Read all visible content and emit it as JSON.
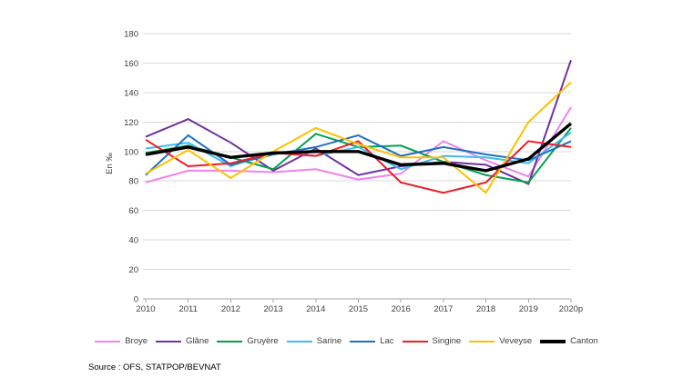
{
  "chart_data": {
    "type": "line",
    "title": "",
    "xlabel": "",
    "ylabel": "En ‰",
    "ylim": [
      0,
      180
    ],
    "ytick_step": 20,
    "grid": true,
    "legend_position": "bottom",
    "categories": [
      "2010",
      "2011",
      "2012",
      "2013",
      "2014",
      "2015",
      "2016",
      "2017",
      "2018",
      "2019",
      "2020p"
    ],
    "series": [
      {
        "name": "Broye",
        "color": "#EE82EE",
        "values": [
          79,
          87,
          87,
          86,
          88,
          81,
          85,
          107,
          94,
          83,
          130
        ]
      },
      {
        "name": "Glâne",
        "color": "#7030A0",
        "values": [
          110,
          122,
          106,
          87,
          102,
          84,
          90,
          93,
          91,
          78,
          162
        ]
      },
      {
        "name": "Gruyère",
        "color": "#00A14E",
        "values": [
          99,
          104,
          96,
          88,
          112,
          103,
          104,
          93,
          84,
          79,
          116
        ]
      },
      {
        "name": "Sarine",
        "color": "#3DBDED",
        "values": [
          102,
          106,
          90,
          100,
          97,
          103,
          88,
          97,
          96,
          92,
          113
        ]
      },
      {
        "name": "Lac",
        "color": "#1F70C1",
        "values": [
          84,
          111,
          91,
          98,
          103,
          111,
          97,
          103,
          98,
          94,
          107
        ]
      },
      {
        "name": "Singine",
        "color": "#EE1C25",
        "values": [
          108,
          90,
          92,
          99,
          97,
          107,
          79,
          72,
          79,
          107,
          103
        ]
      },
      {
        "name": "Veveyse",
        "color": "#FFC000",
        "values": [
          85,
          101,
          82,
          100,
          116,
          105,
          96,
          96,
          72,
          120,
          147
        ]
      },
      {
        "name": "Canton",
        "color": "#000000",
        "values": [
          98,
          103,
          96,
          99,
          100,
          100,
          91,
          92,
          87,
          95,
          119
        ]
      }
    ]
  },
  "styles": {
    "gridline_color": "#D9D9D9",
    "axis_color": "#A6A6A6",
    "tick_label_color": "#404040"
  },
  "source_note": "Source : OFS, STATPOP/BEVNAT"
}
